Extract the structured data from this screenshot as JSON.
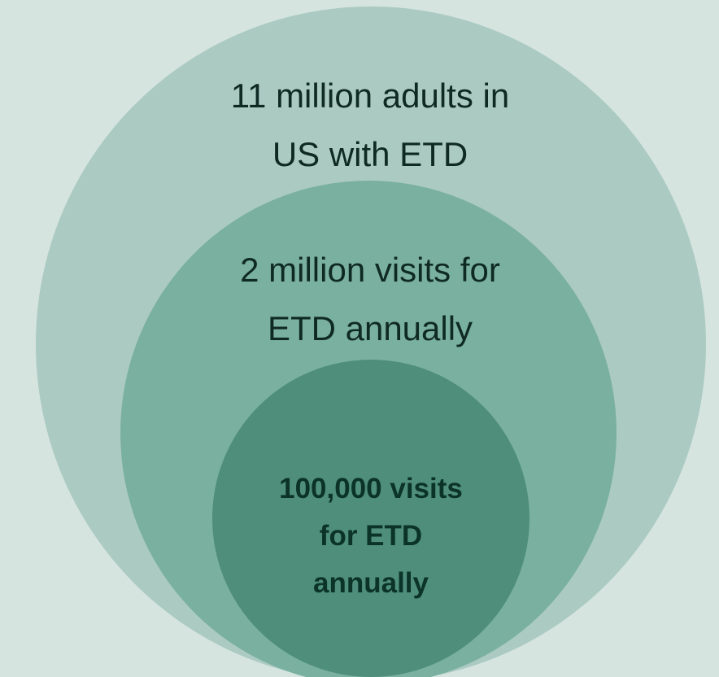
{
  "colors": {
    "background": "#d5e4df",
    "outer_circle": "#abcac2",
    "middle_circle": "#7ab0a0",
    "inner_circle": "#4e8e7b",
    "text": "#0f2a22",
    "inner_text": "#0c3327"
  },
  "circles": {
    "outer": {
      "label_lines": [
        "11 million adults in",
        "US with ETD"
      ]
    },
    "middle": {
      "label_lines": [
        "2 million visits for",
        "ETD annually"
      ]
    },
    "inner": {
      "label_lines": [
        "100,000 visits",
        "for ETD",
        "annually"
      ]
    }
  }
}
